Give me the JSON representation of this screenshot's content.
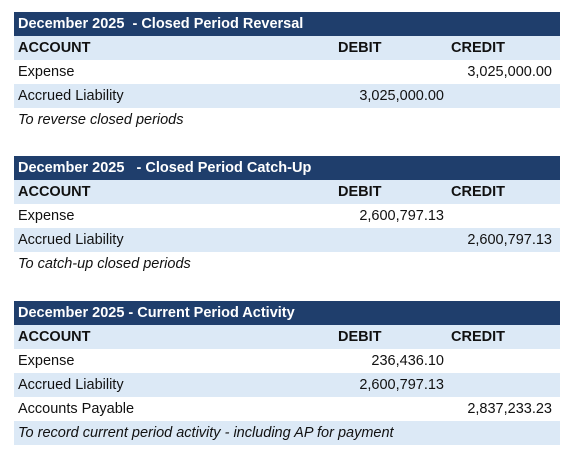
{
  "entries": [
    {
      "title": "December 2025  - Closed Period Reversal",
      "headers": {
        "account": "ACCOUNT",
        "debit": "DEBIT",
        "credit": "CREDIT"
      },
      "lines": [
        {
          "account": "Expense",
          "debit": "",
          "credit": "3,025,000.00"
        },
        {
          "account": "Accrued Liability",
          "debit": "3,025,000.00",
          "credit": ""
        }
      ],
      "memo": "To reverse closed periods"
    },
    {
      "title": "December 2025   - Closed Period Catch-Up",
      "headers": {
        "account": "ACCOUNT",
        "debit": "DEBIT",
        "credit": "CREDIT"
      },
      "lines": [
        {
          "account": "Expense",
          "debit": "2,600,797.13",
          "credit": ""
        },
        {
          "account": "Accrued Liability",
          "debit": "",
          "credit": "2,600,797.13"
        }
      ],
      "memo": "To catch-up closed periods"
    },
    {
      "title": "December 2025 - Current Period Activity",
      "headers": {
        "account": "ACCOUNT",
        "debit": "DEBIT",
        "credit": "CREDIT"
      },
      "lines": [
        {
          "account": "Expense",
          "debit": "236,436.10",
          "credit": ""
        },
        {
          "account": "Accrued Liability",
          "debit": "2,600,797.13",
          "credit": ""
        },
        {
          "account": "Accounts Payable",
          "debit": "",
          "credit": "2,837,233.23"
        }
      ],
      "memo": "To record current period activity - including AP for payment"
    }
  ],
  "colors": {
    "title_background": "#1f3e6c",
    "title_text": "#ffffff",
    "row_shading": "#dce9f6"
  }
}
